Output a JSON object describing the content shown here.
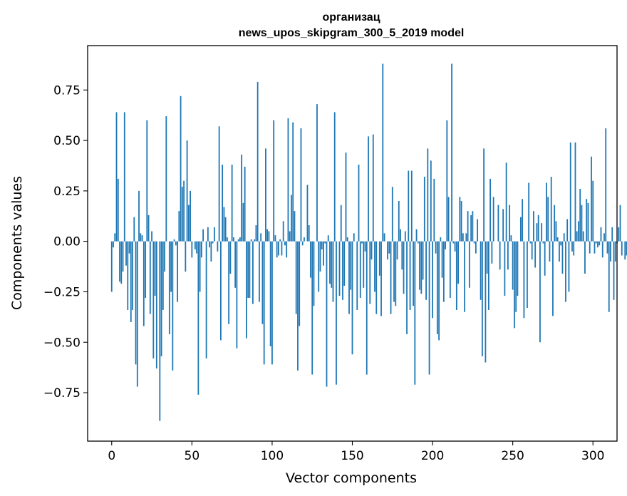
{
  "chart_data": {
    "type": "bar",
    "title_line1": "организац",
    "title_line2": "news_upos_skipgram_300_5_2019 model",
    "xlabel": "Vector components",
    "ylabel": "Components values",
    "xlim": [
      -15,
      315
    ],
    "ylim": [
      -0.99,
      0.97
    ],
    "xticks": [
      0,
      50,
      100,
      150,
      200,
      250,
      300
    ],
    "yticks": [
      -0.75,
      -0.5,
      -0.25,
      0.0,
      0.25,
      0.5,
      0.75
    ],
    "ytick_labels": [
      "−0.75",
      "−0.50",
      "−0.25",
      "0.00",
      "0.25",
      "0.50",
      "0.75"
    ],
    "bar_color": "#1f77b4",
    "grid": false,
    "values": [
      -0.25,
      -0.03,
      0.04,
      0.64,
      0.31,
      -0.2,
      -0.21,
      -0.15,
      0.64,
      -0.12,
      -0.34,
      -0.06,
      -0.4,
      -0.34,
      0.12,
      -0.61,
      -0.72,
      0.25,
      0.04,
      0.03,
      -0.42,
      -0.28,
      0.6,
      0.13,
      -0.36,
      0.05,
      -0.58,
      -0.27,
      -0.63,
      0.0,
      -0.89,
      -0.57,
      -0.34,
      -0.15,
      0.62,
      0.0,
      -0.46,
      -0.25,
      -0.64,
      0.01,
      -0.02,
      -0.3,
      0.15,
      0.72,
      0.27,
      0.3,
      -0.15,
      0.5,
      0.18,
      0.25,
      -0.08,
      0.0,
      -0.04,
      -0.06,
      -0.76,
      -0.25,
      -0.08,
      0.06,
      0.0,
      -0.58,
      0.07,
      -0.03,
      -0.1,
      -0.01,
      0.07,
      0.0,
      -0.05,
      0.57,
      -0.49,
      0.38,
      0.17,
      0.12,
      0.02,
      -0.41,
      -0.16,
      0.38,
      0.02,
      -0.23,
      -0.53,
      0.01,
      0.02,
      0.43,
      0.19,
      0.37,
      -0.48,
      -0.28,
      -0.28,
      0.01,
      -0.31,
      0.01,
      0.08,
      0.79,
      -0.3,
      0.04,
      -0.41,
      -0.61,
      0.46,
      0.06,
      0.05,
      -0.52,
      -0.61,
      0.6,
      0.03,
      -0.08,
      -0.07,
      0.01,
      -0.07,
      0.1,
      -0.02,
      -0.08,
      0.61,
      0.05,
      0.23,
      0.59,
      0.15,
      -0.36,
      -0.64,
      -0.42,
      0.56,
      -0.02,
      0.02,
      0.0,
      0.28,
      0.08,
      -0.18,
      -0.66,
      -0.32,
      0.0,
      0.68,
      -0.25,
      -0.15,
      -0.04,
      -0.12,
      -0.01,
      -0.72,
      0.03,
      -0.21,
      -0.23,
      -0.3,
      0.64,
      -0.71,
      0.0,
      -0.27,
      0.18,
      -0.29,
      -0.22,
      0.44,
      0.02,
      -0.36,
      -0.24,
      -0.56,
      0.04,
      0.0,
      -0.34,
      0.38,
      -0.28,
      -0.01,
      -0.23,
      -0.05,
      -0.66,
      0.52,
      -0.31,
      -0.09,
      0.53,
      -0.25,
      -0.36,
      0.0,
      -0.17,
      -0.37,
      0.88,
      0.04,
      0.0,
      -0.09,
      -0.06,
      -0.36,
      0.27,
      -0.3,
      -0.32,
      -0.09,
      0.2,
      0.06,
      -0.14,
      -0.26,
      0.05,
      -0.46,
      0.35,
      -0.34,
      0.35,
      -0.32,
      -0.71,
      0.06,
      -0.01,
      -0.24,
      -0.26,
      -0.19,
      0.32,
      -0.29,
      0.46,
      -0.66,
      0.4,
      -0.38,
      0.31,
      -0.06,
      -0.46,
      -0.49,
      0.02,
      -0.18,
      -0.3,
      -0.04,
      0.6,
      0.22,
      -0.28,
      0.88,
      -0.01,
      -0.05,
      -0.34,
      -0.21,
      0.22,
      0.2,
      0.04,
      -0.35,
      0.04,
      0.15,
      -0.23,
      0.13,
      0.15,
      -0.01,
      -0.06,
      0.11,
      0.0,
      -0.29,
      -0.57,
      0.46,
      -0.6,
      -0.16,
      -0.34,
      0.31,
      -0.11,
      0.22,
      0.0,
      0.0,
      0.18,
      -0.14,
      0.0,
      0.16,
      -0.27,
      0.39,
      -0.14,
      0.18,
      0.03,
      -0.24,
      -0.43,
      -0.35,
      -0.27,
      0.0,
      0.12,
      0.21,
      -0.38,
      0.0,
      -0.33,
      0.29,
      -0.01,
      -0.09,
      0.15,
      -0.13,
      0.09,
      0.13,
      -0.5,
      0.09,
      -0.01,
      -0.17,
      0.29,
      0.22,
      -0.1,
      0.32,
      -0.37,
      0.18,
      0.1,
      0.02,
      -0.1,
      -0.02,
      -0.16,
      0.04,
      -0.3,
      0.11,
      -0.25,
      0.49,
      -0.05,
      -0.07,
      0.49,
      0.05,
      0.1,
      0.26,
      0.18,
      0.05,
      -0.16,
      0.21,
      0.19,
      -0.06,
      0.42,
      0.3,
      -0.06,
      -0.01,
      -0.03,
      -0.02,
      0.07,
      -0.08,
      0.04,
      0.56,
      -0.06,
      -0.35,
      -0.1,
      0.07,
      -0.29,
      -0.1,
      -0.01,
      0.07,
      0.18,
      -0.07,
      0.0,
      -0.09,
      -0.07,
      -0.15,
      0.06
    ]
  }
}
